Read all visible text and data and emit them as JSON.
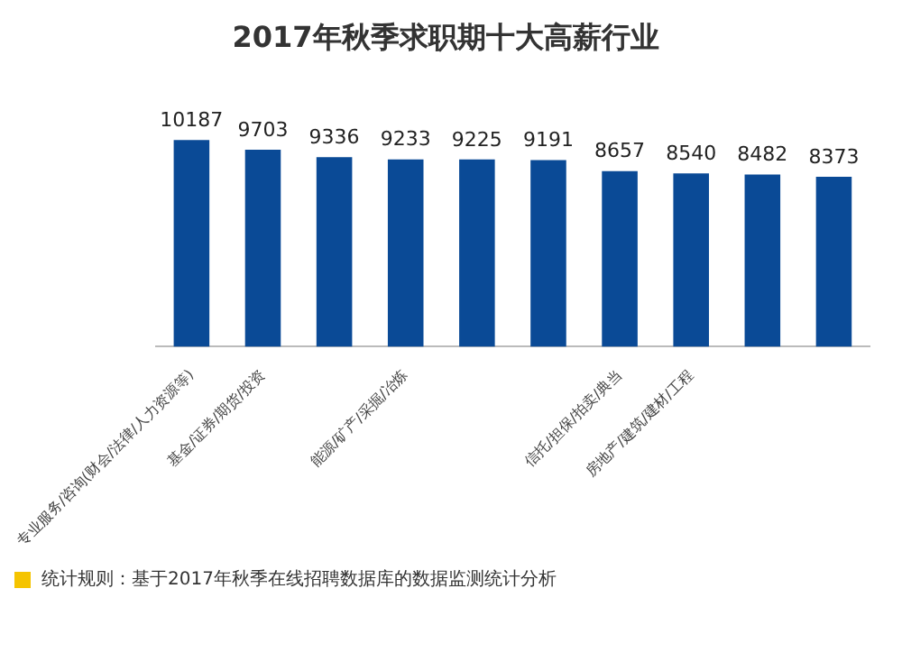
{
  "chart_data": {
    "type": "bar",
    "title": "2017年秋季求职期十大高薪行业",
    "categories": [
      "专业服务/咨询(财会/法律/人力资源等)",
      "基金/证券/期货/投资",
      null,
      "能源/矿产/采掘/冶炼",
      null,
      null,
      "信托/担保/拍卖/典当",
      "房地产/建筑/建材/工程",
      null,
      null
    ],
    "values": [
      10187,
      9703,
      9336,
      9233,
      9225,
      9191,
      8657,
      8540,
      8482,
      8373
    ],
    "color": "#0a4a96",
    "data_labels": true,
    "tick_labels": "x",
    "annotations": [
      "统计规则：基于2017年秋季在线招聘数据库的数据监测统计分析"
    ]
  }
}
